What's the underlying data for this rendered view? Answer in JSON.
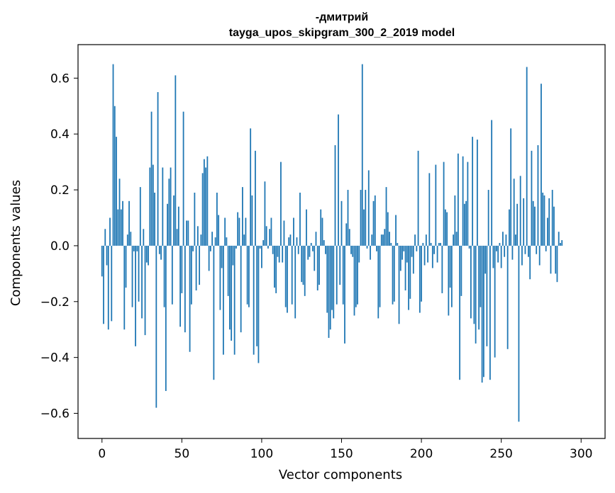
{
  "chart_data": {
    "type": "bar",
    "title_line1": "-дмитрий",
    "title_line2": "tayga_upos_skipgram_300_2_2019 model",
    "xlabel": "Vector components",
    "ylabel": "Components values",
    "xlim": [
      -15,
      315
    ],
    "ylim": [
      -0.69,
      0.72
    ],
    "xticks": [
      0,
      50,
      100,
      150,
      200,
      250,
      300
    ],
    "xtick_labels": [
      "0",
      "50",
      "100",
      "150",
      "200",
      "250",
      "300"
    ],
    "yticks": [
      -0.6,
      -0.4,
      -0.2,
      0.0,
      0.2,
      0.4,
      0.6
    ],
    "ytick_labels": [
      "−0.6",
      "−0.4",
      "−0.2",
      "0.0",
      "0.2",
      "0.4",
      "0.6"
    ],
    "grid": false,
    "bar_color": "#1f77b4",
    "values": [
      -0.11,
      -0.28,
      0.06,
      -0.07,
      -0.3,
      0.1,
      -0.27,
      0.65,
      0.5,
      0.39,
      0.13,
      0.24,
      0.13,
      0.16,
      -0.3,
      -0.15,
      0.04,
      0.16,
      0.05,
      -0.22,
      -0.02,
      -0.36,
      -0.02,
      -0.2,
      0.21,
      -0.26,
      0.06,
      -0.32,
      -0.06,
      -0.07,
      0.28,
      0.48,
      0.29,
      0.19,
      -0.58,
      0.55,
      -0.03,
      -0.05,
      0.28,
      -0.22,
      -0.52,
      0.15,
      0.24,
      0.28,
      -0.21,
      0.18,
      0.61,
      0.06,
      0.14,
      -0.29,
      -0.17,
      0.48,
      -0.31,
      0.09,
      0.09,
      -0.38,
      -0.21,
      -0.02,
      0.19,
      -0.16,
      0.07,
      -0.14,
      0.04,
      0.26,
      0.31,
      0.28,
      0.32,
      -0.09,
      -0.02,
      0.05,
      -0.48,
      0.03,
      0.19,
      0.11,
      -0.23,
      -0.08,
      -0.39,
      0.1,
      0.03,
      -0.18,
      -0.3,
      -0.34,
      -0.07,
      -0.39,
      -0.01,
      0.12,
      0.1,
      -0.31,
      0.21,
      0.04,
      0.1,
      -0.21,
      -0.22,
      0.42,
      0.18,
      -0.39,
      0.34,
      -0.36,
      -0.42,
      -0.01,
      -0.08,
      0.02,
      0.23,
      0.07,
      -0.01,
      0.06,
      0.1,
      -0.03,
      -0.15,
      -0.17,
      -0.04,
      -0.06,
      0.3,
      -0.06,
      0.09,
      -0.22,
      -0.24,
      0.03,
      0.04,
      -0.21,
      0.1,
      -0.26,
      0.03,
      -0.03,
      0.19,
      -0.13,
      -0.14,
      -0.18,
      0.13,
      -0.05,
      -0.04,
      0.01,
      -0.02,
      -0.09,
      0.05,
      -0.16,
      -0.14,
      0.13,
      0.1,
      0.02,
      -0.03,
      -0.24,
      -0.33,
      -0.3,
      -0.23,
      -0.26,
      0.36,
      -0.21,
      0.47,
      -0.14,
      0.16,
      -0.21,
      -0.35,
      0.08,
      0.2,
      0.06,
      -0.03,
      -0.04,
      -0.25,
      -0.22,
      -0.21,
      -0.06,
      0.2,
      0.65,
      0.13,
      0.2,
      -0.01,
      0.27,
      -0.05,
      0.04,
      0.16,
      0.18,
      -0.02,
      -0.26,
      -0.22,
      0.04,
      0.04,
      0.06,
      0.21,
      0.12,
      0.05,
      0.01,
      -0.21,
      -0.2,
      0.11,
      0.01,
      -0.28,
      -0.09,
      -0.05,
      -0.02,
      -0.16,
      -0.06,
      -0.23,
      -0.19,
      -0.04,
      -0.1,
      0.04,
      -0.02,
      0.34,
      -0.24,
      -0.2,
      0.01,
      -0.07,
      0.04,
      -0.06,
      0.26,
      0.01,
      -0.08,
      -0.03,
      0.29,
      -0.06,
      0.01,
      0.01,
      -0.17,
      0.3,
      0.13,
      0.12,
      -0.25,
      -0.15,
      -0.22,
      0.04,
      0.18,
      0.05,
      0.33,
      -0.48,
      -0.18,
      0.32,
      0.15,
      0.16,
      0.3,
      -0.01,
      -0.26,
      0.39,
      -0.28,
      -0.35,
      0.38,
      -0.3,
      -0.22,
      -0.49,
      -0.47,
      -0.1,
      -0.36,
      0.2,
      -0.48,
      0.45,
      -0.08,
      -0.4,
      -0.02,
      -0.06,
      0.01,
      -0.08,
      0.05,
      -0.04,
      0.04,
      -0.37,
      0.13,
      0.42,
      -0.05,
      0.24,
      0.04,
      0.15,
      -0.63,
      0.25,
      -0.07,
      0.17,
      -0.03,
      0.64,
      -0.04,
      -0.12,
      0.34,
      0.16,
      0.14,
      -0.03,
      0.36,
      -0.07,
      0.58,
      0.19,
      0.18,
      -0.02,
      0.1,
      0.17,
      -0.1,
      0.2,
      0.14,
      -0.1,
      -0.13,
      0.05,
      0.01,
      0.02
    ]
  }
}
